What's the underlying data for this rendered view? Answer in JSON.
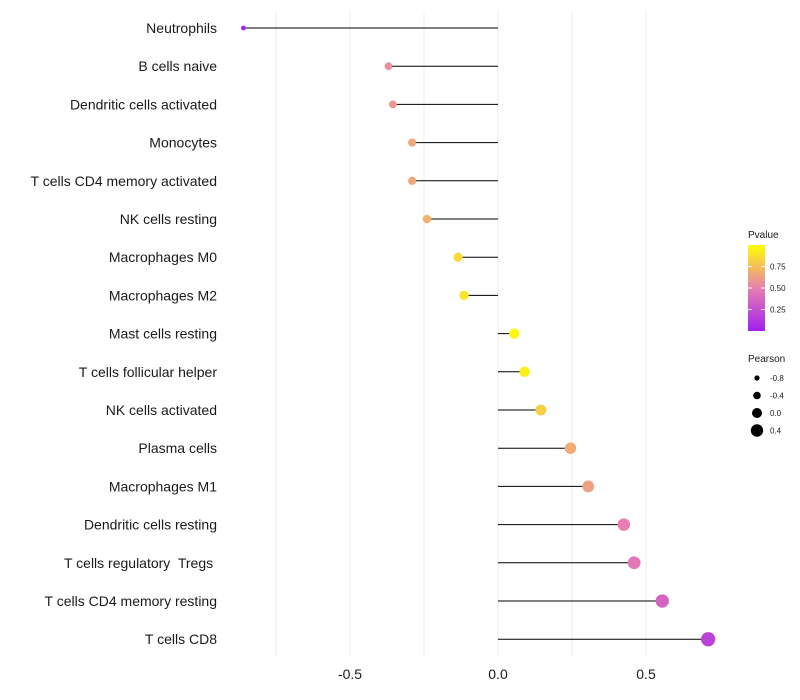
{
  "chart_data": {
    "type": "lollipop",
    "title": "",
    "xlabel": "",
    "ylabel": "",
    "xlim": [
      -1.0,
      0.75
    ],
    "xticks": [
      -0.5,
      0.0,
      0.5
    ],
    "xtick_labels": [
      "-0.5",
      "0.0",
      "0.5"
    ],
    "grid": true,
    "color_gradient": {
      "low": "#a020f0",
      "high": "#ffff00"
    },
    "points": [
      {
        "label": "Neutrophils",
        "value": -0.86,
        "pvalue": 0.02
      },
      {
        "label": "B cells naive",
        "value": -0.37,
        "pvalue": 0.58
      },
      {
        "label": "Dendritic cells activated",
        "value": -0.355,
        "pvalue": 0.62
      },
      {
        "label": "Monocytes",
        "value": -0.29,
        "pvalue": 0.7
      },
      {
        "label": "T cells CD4 memory activated",
        "value": -0.29,
        "pvalue": 0.7
      },
      {
        "label": "NK cells resting",
        "value": -0.24,
        "pvalue": 0.75
      },
      {
        "label": "Macrophages M0",
        "value": -0.135,
        "pvalue": 0.88
      },
      {
        "label": "Macrophages M2",
        "value": -0.115,
        "pvalue": 0.92
      },
      {
        "label": "Mast cells resting",
        "value": 0.055,
        "pvalue": 0.97
      },
      {
        "label": "T cells follicular helper",
        "value": 0.09,
        "pvalue": 0.95
      },
      {
        "label": "NK cells activated",
        "value": 0.145,
        "pvalue": 0.84
      },
      {
        "label": "Plasma cells",
        "value": 0.245,
        "pvalue": 0.72
      },
      {
        "label": "Macrophages M1",
        "value": 0.305,
        "pvalue": 0.66
      },
      {
        "label": "Dendritic cells resting",
        "value": 0.425,
        "pvalue": 0.5
      },
      {
        "label": "T cells regulatory  Tregs ",
        "value": 0.46,
        "pvalue": 0.46
      },
      {
        "label": "T cells CD4 memory resting",
        "value": 0.555,
        "pvalue": 0.36
      },
      {
        "label": "T cells CD8",
        "value": 0.71,
        "pvalue": 0.18
      }
    ],
    "legend_color": {
      "title": "Pvalue",
      "position": "right",
      "ticks": [
        0.75,
        0.5,
        0.25
      ],
      "tick_labels": [
        "0.75",
        "0.50",
        "0.25"
      ],
      "range": [
        0.0,
        1.0
      ]
    },
    "legend_size": {
      "title": "Pearson",
      "position": "right",
      "values": [
        -0.8,
        -0.4,
        0.0,
        0.4
      ],
      "labels": [
        "-0.8",
        "-0.4",
        "0.0",
        "0.4"
      ]
    }
  }
}
